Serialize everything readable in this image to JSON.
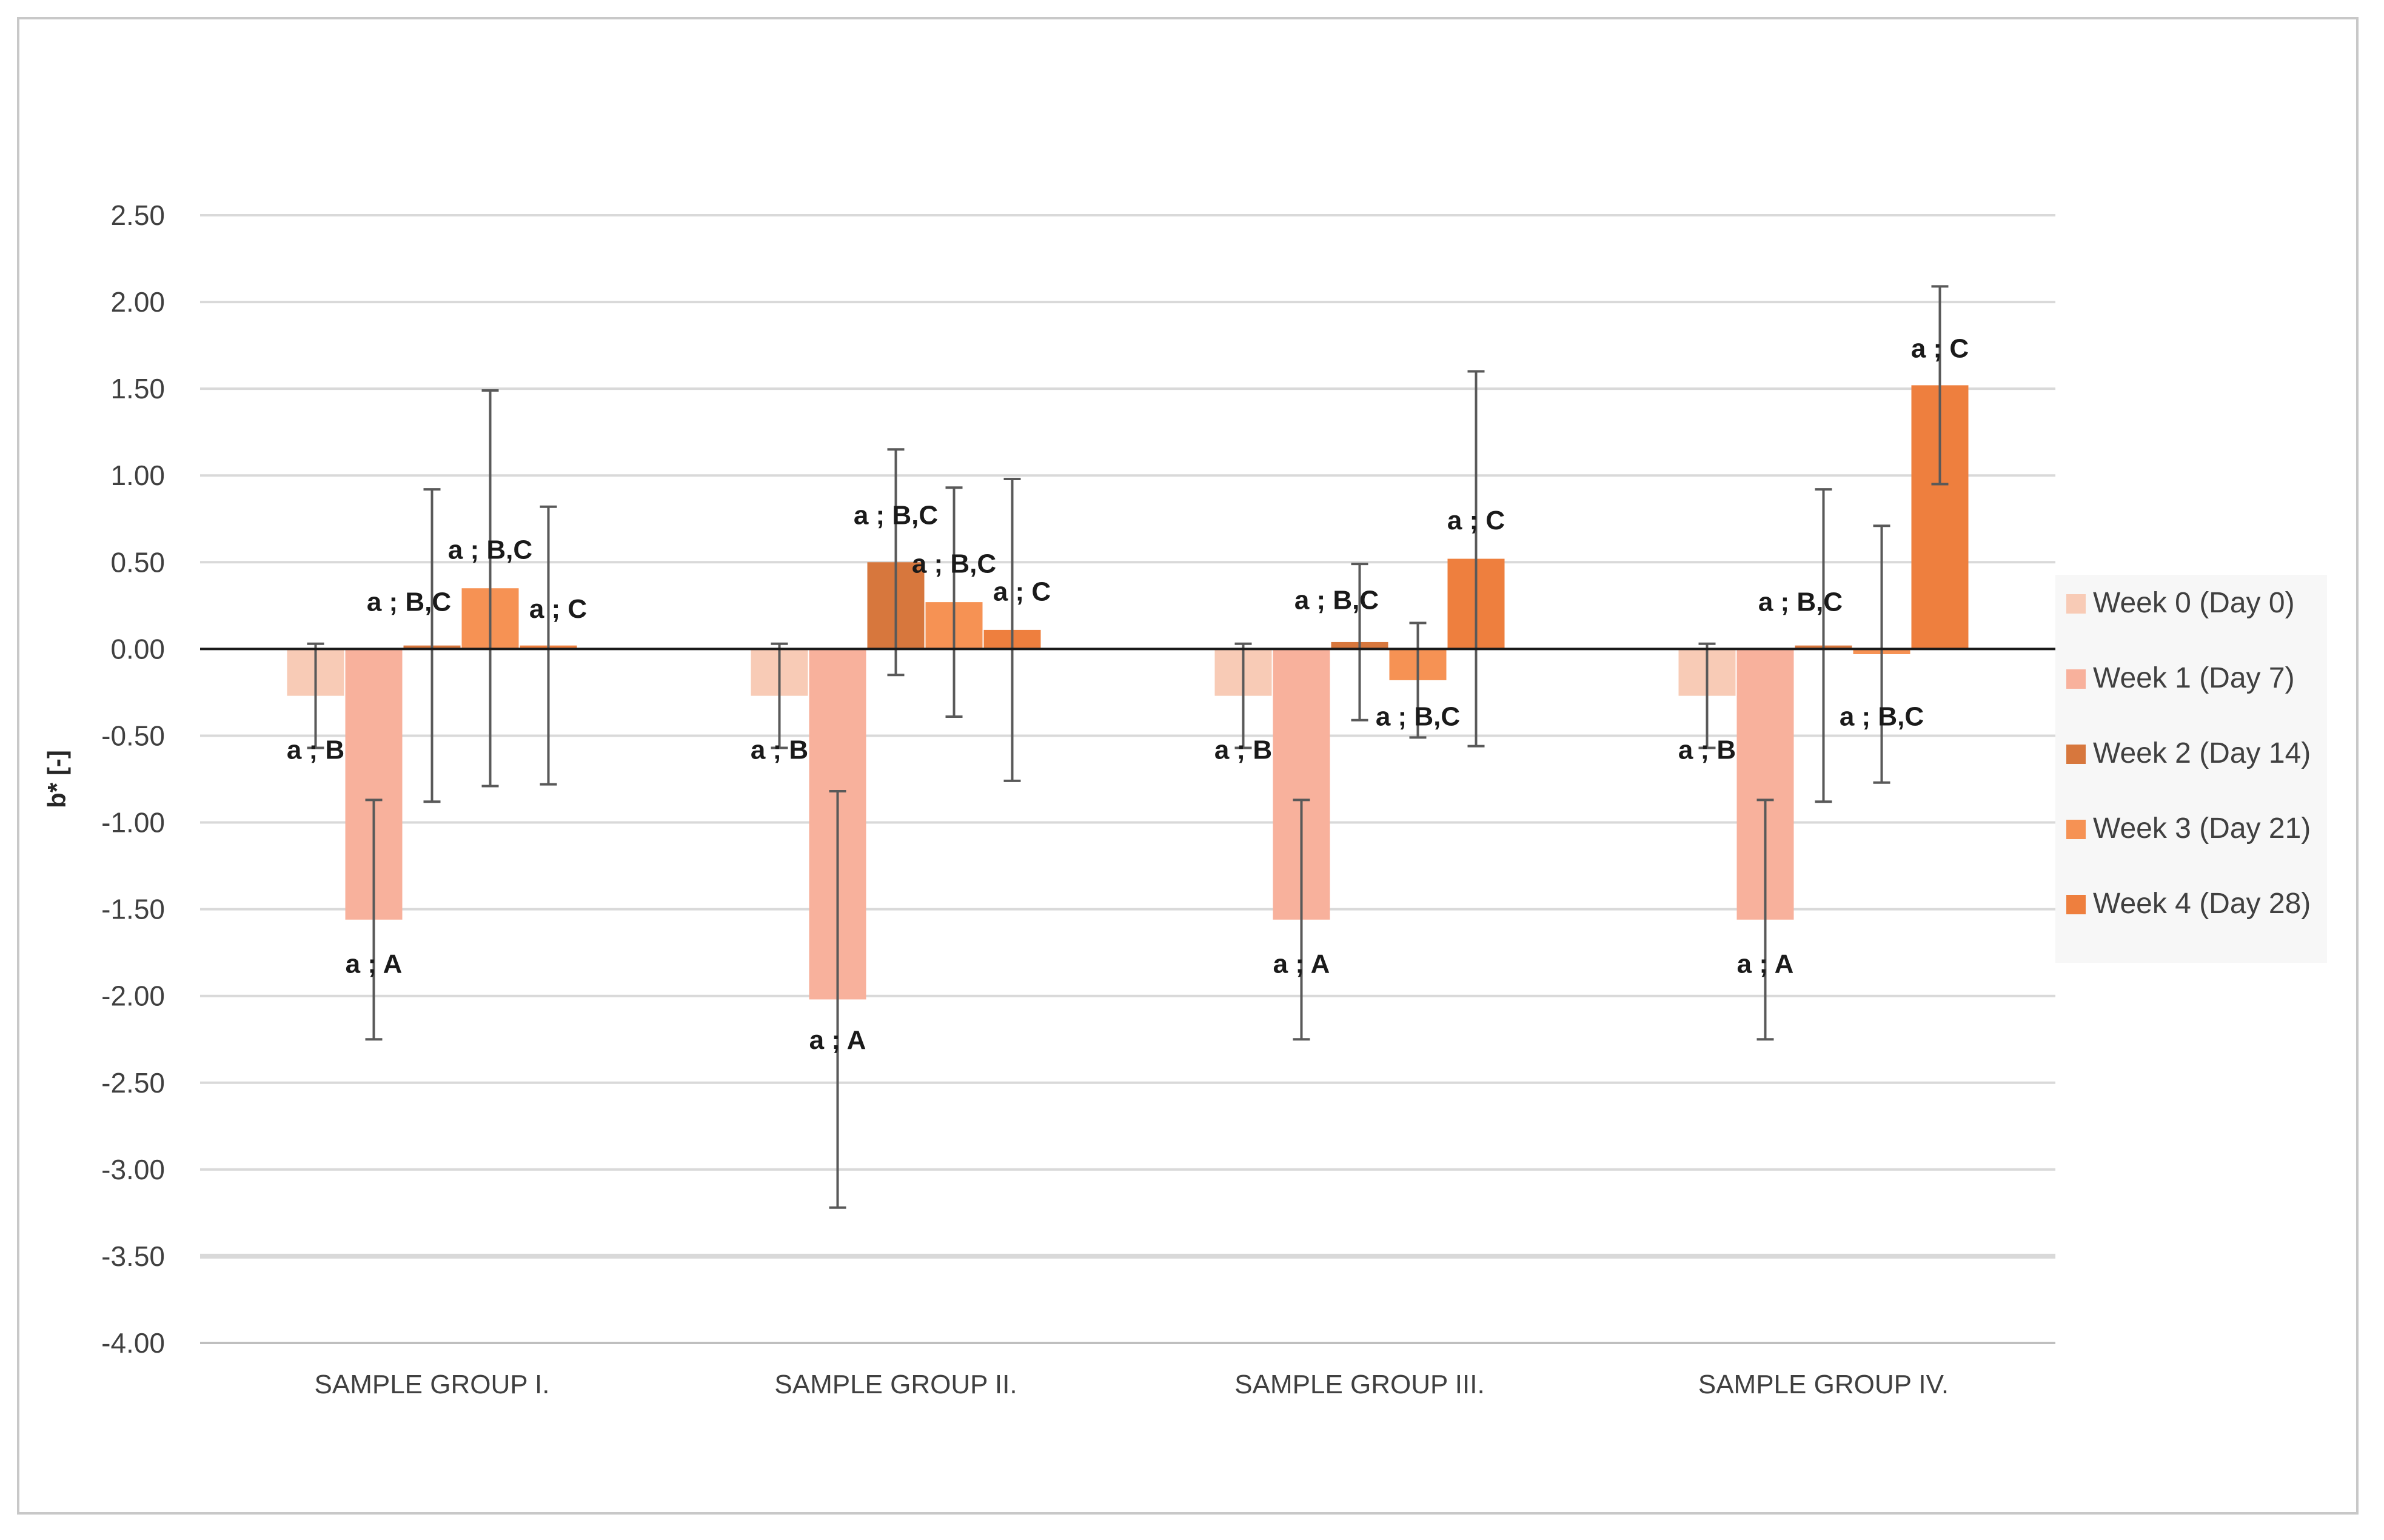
{
  "chart_data": {
    "type": "bar",
    "title": "",
    "xlabel": "",
    "ylabel": "b* [-]",
    "ylim": [
      -4.0,
      2.5
    ],
    "ytick_step": 0.5,
    "grid": true,
    "legend_position": "right",
    "categories": [
      "SAMPLE GROUP I.",
      "SAMPLE GROUP II.",
      "SAMPLE GROUP III.",
      "SAMPLE GROUP IV."
    ],
    "series": [
      {
        "name": "Week 0 (Day 0)",
        "color": "#f8cbb6",
        "values": [
          -0.27,
          -0.27,
          -0.27,
          -0.27
        ],
        "errors": [
          0.3,
          0.3,
          0.3,
          0.3
        ],
        "labels": [
          "a ; B",
          "a ; B",
          "a ; B",
          "a ; B"
        ]
      },
      {
        "name": "Week 1 (Day 7)",
        "color": "#f8b19c",
        "values": [
          -1.56,
          -2.02,
          -1.56,
          -1.56
        ],
        "errors": [
          0.69,
          1.2,
          0.69,
          0.69
        ],
        "labels": [
          "a ; A",
          "a ; A",
          "a ; A",
          "a ; A"
        ]
      },
      {
        "name": "Week 2 (Day 14)",
        "color": "#d7773d",
        "values": [
          0.02,
          0.5,
          0.04,
          0.02
        ],
        "errors": [
          0.9,
          0.65,
          0.45,
          0.9
        ],
        "labels": [
          "a ; B,C",
          "a ; B,C",
          "a ; B,C",
          "a ; B,C"
        ]
      },
      {
        "name": "Week 3 (Day 21)",
        "color": "#f69254",
        "values": [
          0.35,
          0.27,
          -0.18,
          -0.03
        ],
        "errors": [
          1.14,
          0.66,
          0.33,
          0.74
        ],
        "labels": [
          "a ; B,C",
          "a ; B,C",
          "a ; B,C",
          "a ; B,C"
        ]
      },
      {
        "name": "Week 4 (Day 28)",
        "color": "#ee7f3e",
        "values": [
          0.02,
          0.11,
          0.52,
          1.52
        ],
        "errors": [
          0.8,
          0.87,
          1.08,
          0.57
        ],
        "labels": [
          "a ; C",
          "a ; C",
          "a ; C",
          "a ; C"
        ]
      }
    ]
  }
}
